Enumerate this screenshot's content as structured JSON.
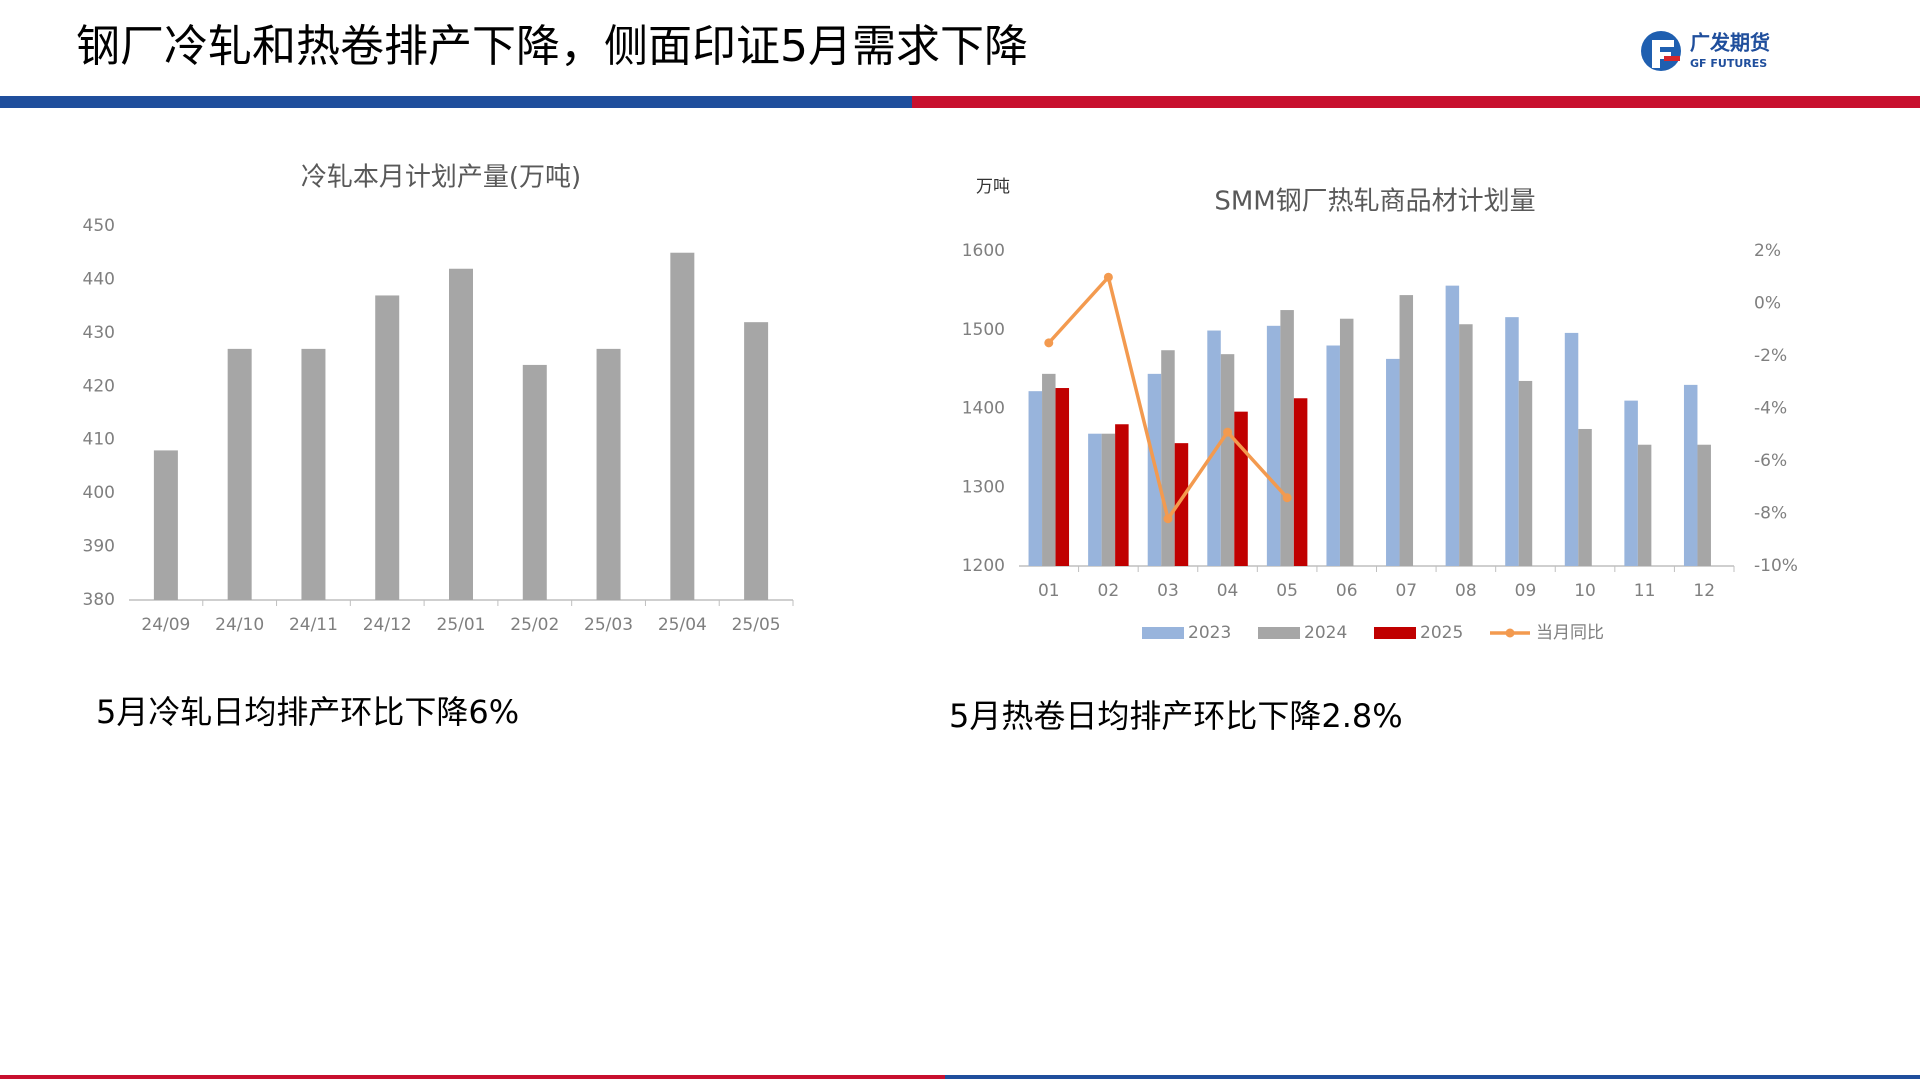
{
  "header": {
    "title": "钢厂冷轧和热卷排产下降，侧面印证5月需求下降",
    "logo": "广发期货",
    "logo_sub": "GF FUTURES"
  },
  "captions": [
    "5月冷轧日均排产环比下降6%",
    "5月热卷日均排产环比下降2.8%"
  ],
  "chart_data": [
    {
      "type": "bar",
      "title": "冷轧本月计划产量(万吨)",
      "categories": [
        "24/09",
        "24/10",
        "24/11",
        "24/12",
        "25/01",
        "25/02",
        "25/03",
        "25/04",
        "25/05"
      ],
      "values": [
        408,
        427,
        427,
        437,
        442,
        424,
        427,
        445,
        432
      ],
      "color": "#a6a6a6",
      "ylim": [
        380,
        450
      ],
      "yticks": [
        380,
        390,
        400,
        410,
        420,
        430,
        440,
        450
      ],
      "grid": false
    },
    {
      "type": "bar",
      "title": "SMM钢厂热轧商品材计划量",
      "y_label": "万吨",
      "categories": [
        "01",
        "02",
        "03",
        "04",
        "05",
        "06",
        "07",
        "08",
        "09",
        "10",
        "11",
        "12"
      ],
      "series": [
        {
          "name": "2023",
          "color": "#98b4dc",
          "values": [
            1422,
            1368,
            1444,
            1499,
            1505,
            1480,
            1463,
            1556,
            1516,
            1496,
            1410,
            1430
          ]
        },
        {
          "name": "2024",
          "color": "#a6a6a6",
          "values": [
            1444,
            1368,
            1474,
            1469,
            1525,
            1514,
            1544,
            1507,
            1435,
            1374,
            1354,
            1354
          ]
        },
        {
          "name": "2025",
          "color": "#c00000",
          "values": [
            1426,
            1380,
            1356,
            1396,
            1413,
            null,
            null,
            null,
            null,
            null,
            null,
            null
          ]
        },
        {
          "name": "当月同比",
          "color": "#f39a4f",
          "type": "line",
          "axis": "y2",
          "values": [
            -1.5,
            1.0,
            -8.2,
            -4.9,
            -7.4,
            null,
            null,
            null,
            null,
            null,
            null,
            null
          ]
        }
      ],
      "ylim": [
        1200,
        1600
      ],
      "yticks": [
        1200,
        1300,
        1400,
        1500,
        1600
      ],
      "y2lim": [
        -10,
        2
      ],
      "y2ticks": [
        {
          "value": 2,
          "label": "2%"
        },
        {
          "value": 0,
          "label": "0%"
        },
        {
          "value": -2,
          "label": "-2%"
        },
        {
          "value": -4,
          "label": "-4%"
        },
        {
          "value": -6,
          "label": "-6%"
        },
        {
          "value": -8,
          "label": "-8%"
        },
        {
          "value": -10,
          "label": "-10%"
        }
      ],
      "grid": false,
      "legend": "bottom"
    }
  ]
}
